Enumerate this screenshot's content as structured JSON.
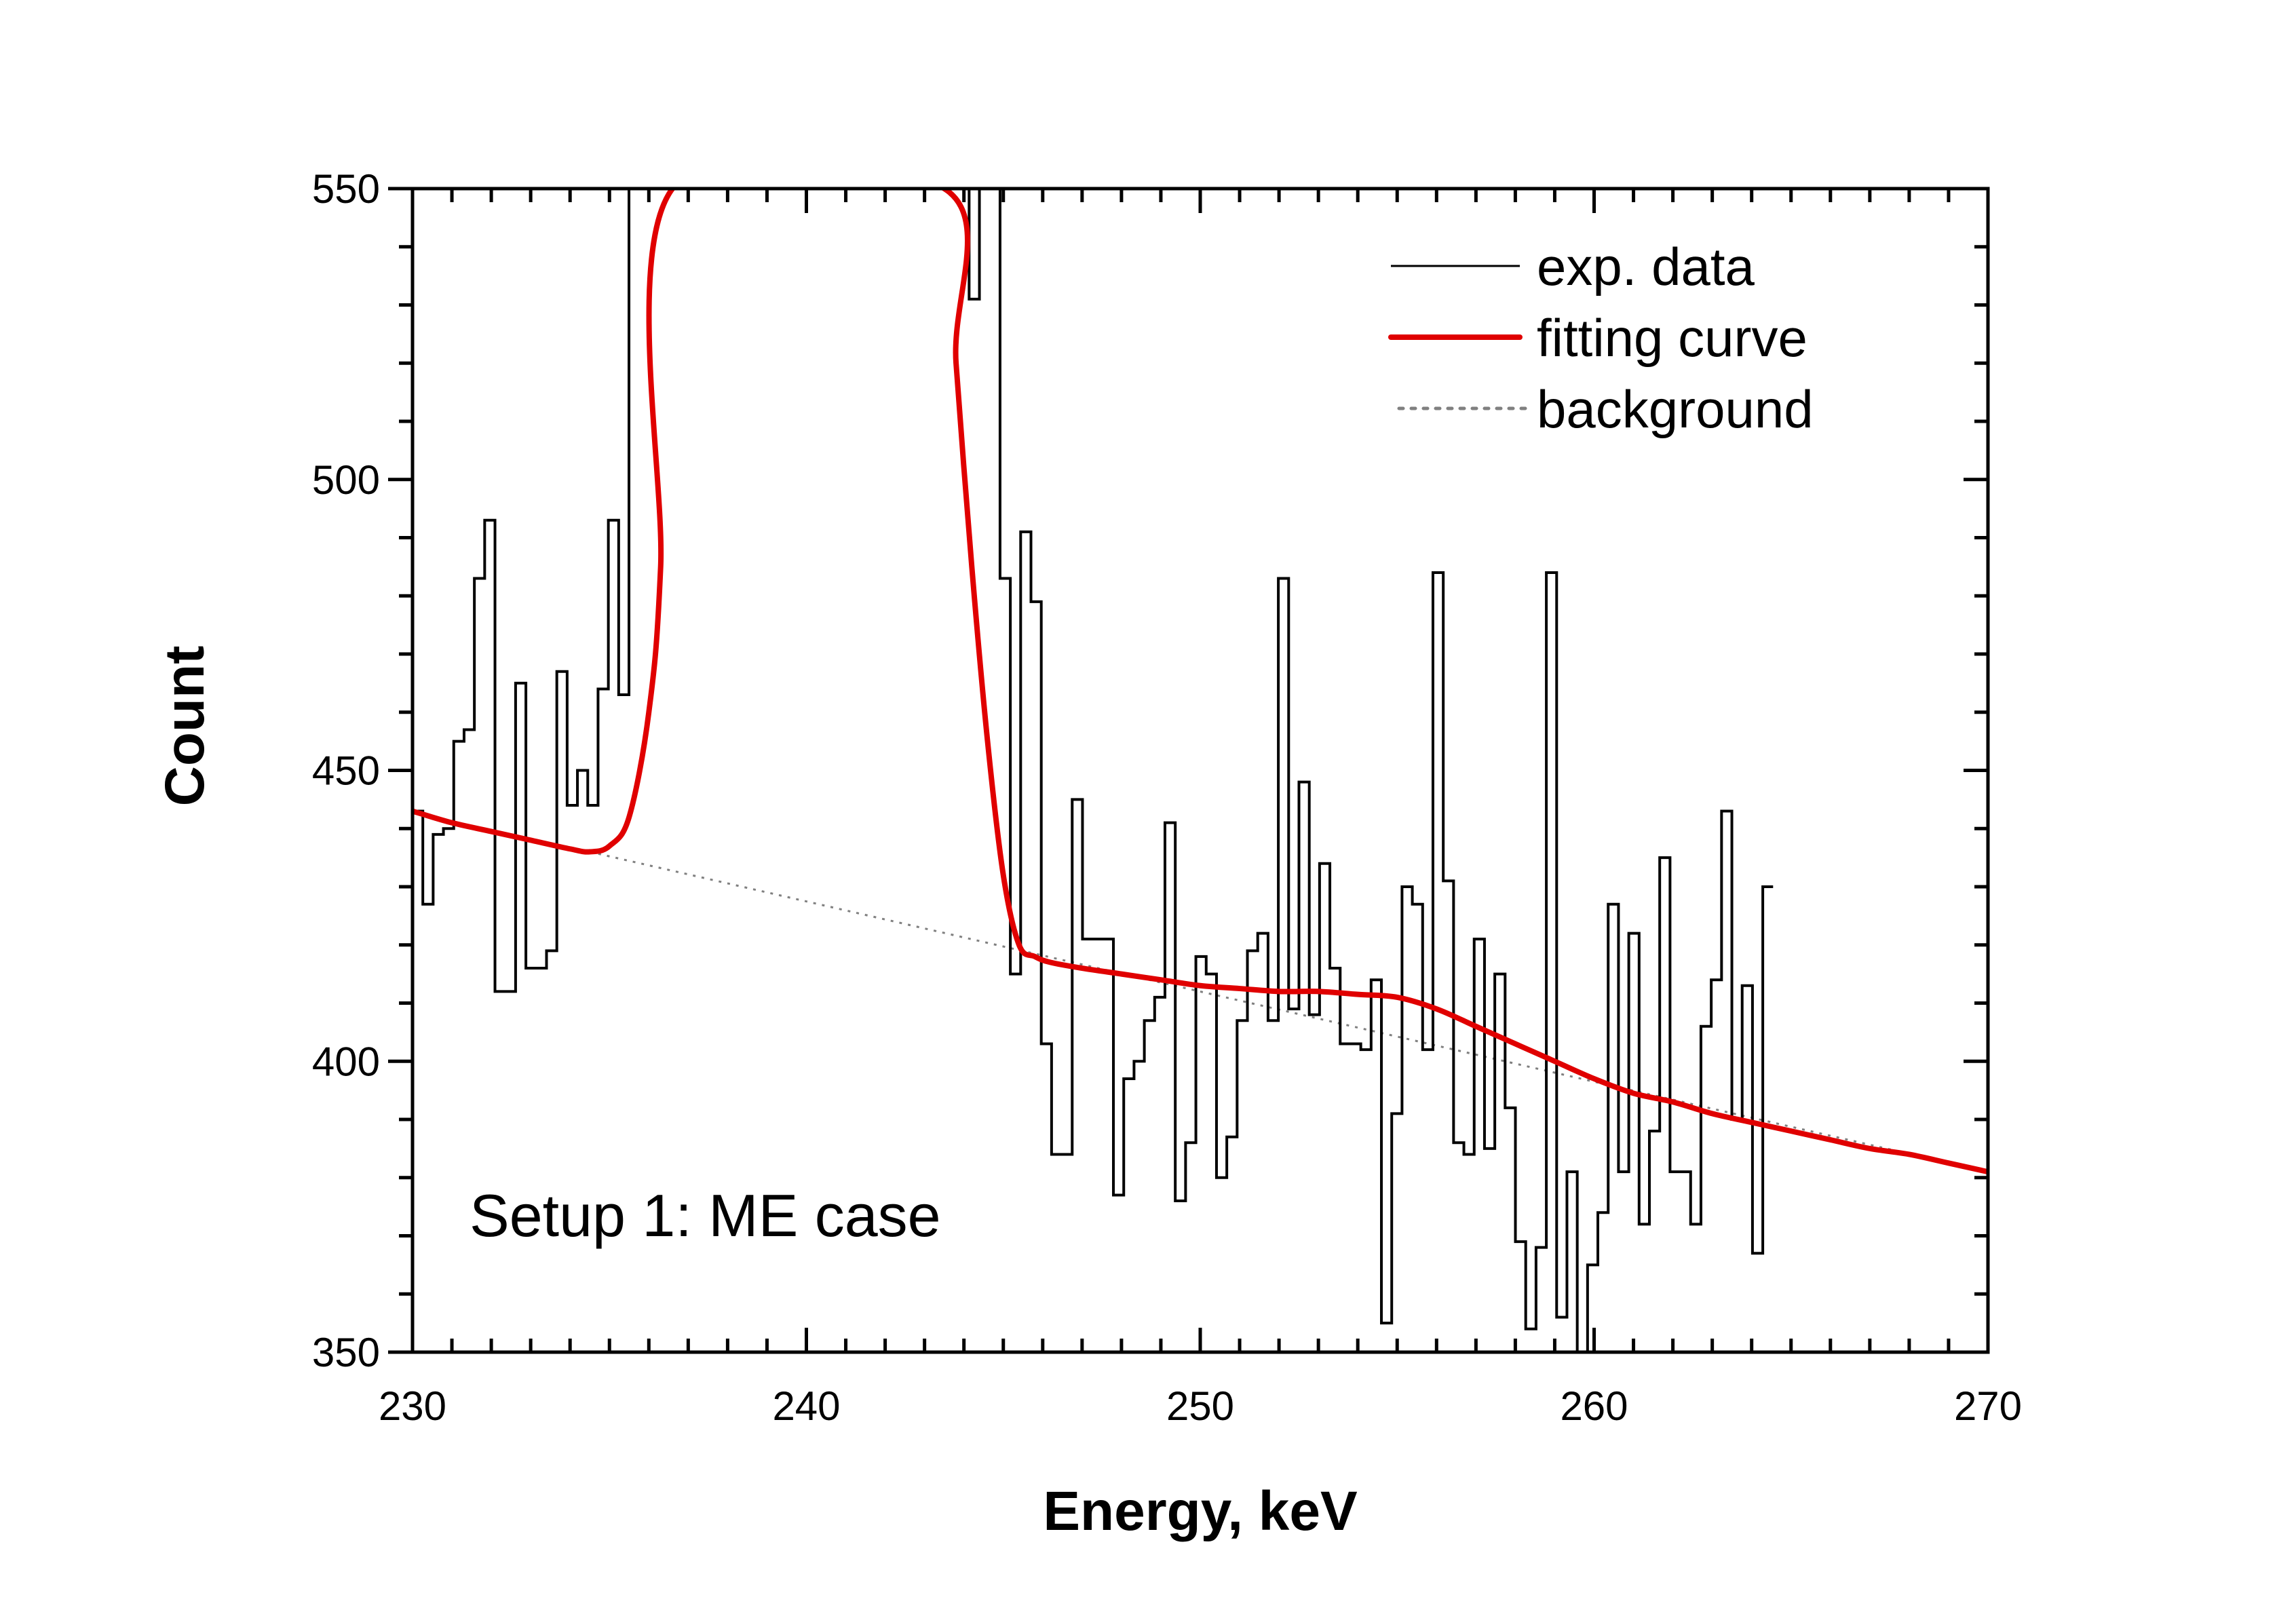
{
  "chart_data": {
    "type": "line",
    "title": "",
    "xlabel": "Energy, keV",
    "ylabel": "Count",
    "xlim": [
      230,
      270
    ],
    "ylim": [
      350,
      550
    ],
    "x_ticks": [
      230,
      240,
      250,
      260,
      270
    ],
    "x_tick_labels": [
      "230",
      "240",
      "250",
      "260",
      "270"
    ],
    "y_ticks": [
      350,
      400,
      450,
      500,
      550
    ],
    "y_tick_labels": [
      "350",
      "400",
      "450",
      "500",
      "550"
    ],
    "x_minor_step": 1,
    "y_minor_step": 10,
    "grid": false,
    "legend_position": "top-right",
    "annotation": "Setup 1: ME case",
    "series": [
      {
        "name": "exp. data",
        "style": "step",
        "color": "#000000",
        "bin_width": 0.2617,
        "x_start": 230.0,
        "values": [
          443,
          427,
          439,
          440,
          455,
          457,
          483,
          493,
          412,
          412,
          465,
          416,
          416,
          419,
          467,
          444,
          450,
          444,
          464,
          493,
          463,
          560,
          560,
          560,
          560,
          560,
          560,
          560,
          560,
          560,
          560,
          560,
          560,
          560,
          560,
          560,
          560,
          560,
          560,
          560,
          560,
          560,
          560,
          560,
          560,
          560,
          560,
          560,
          560,
          560,
          560,
          560,
          560,
          560,
          531,
          560,
          560,
          483,
          415,
          491,
          479,
          403,
          384,
          384,
          445,
          421,
          421,
          421,
          377,
          397,
          400,
          407,
          411,
          441,
          376,
          386,
          418,
          415,
          380,
          387,
          407,
          419,
          422,
          407,
          483,
          409,
          448,
          408,
          434,
          416,
          403,
          403,
          402,
          414,
          355,
          391,
          430,
          427,
          402,
          484,
          431,
          386,
          384,
          421,
          385,
          415,
          392,
          369,
          354,
          368,
          484,
          356,
          381,
          349,
          365,
          374,
          427,
          381,
          422,
          372,
          388,
          435,
          381,
          381,
          372,
          406,
          414,
          443,
          390,
          413,
          367,
          430
        ],
        "peak_note": "bins between ~236.7 and ~243.5 keV exceed the 550 axis limit"
      },
      {
        "name": "fitting curve",
        "style": "line",
        "color": "#e00000",
        "x": [
          230,
          231,
          232,
          233,
          234,
          234.5,
          235,
          235.5,
          236,
          236.3,
          236.6,
          243.5,
          243.8,
          244.2,
          244.6,
          245,
          245.4,
          245.8,
          246.2,
          247,
          248,
          249,
          250,
          251,
          252,
          253,
          254,
          255,
          256,
          257,
          258,
          259,
          260,
          261,
          262,
          263,
          264,
          265,
          266,
          267,
          268,
          269,
          270
        ],
        "y": [
          443,
          441,
          439.5,
          438,
          436.5,
          436,
          437,
          442,
          460,
          485,
          550,
          550,
          520,
          485,
          455,
          432,
          420,
          418,
          417,
          416,
          415,
          414,
          413,
          412.5,
          412,
          412,
          411.5,
          411,
          409,
          406,
          403,
          400,
          397,
          394.5,
          393,
          391,
          389.5,
          388,
          386.5,
          385,
          384,
          382.5,
          381
        ]
      },
      {
        "name": "background",
        "style": "dotted",
        "color": "#808080",
        "x": [
          234.5,
          270
        ],
        "y": [
          436,
          381
        ]
      }
    ]
  }
}
